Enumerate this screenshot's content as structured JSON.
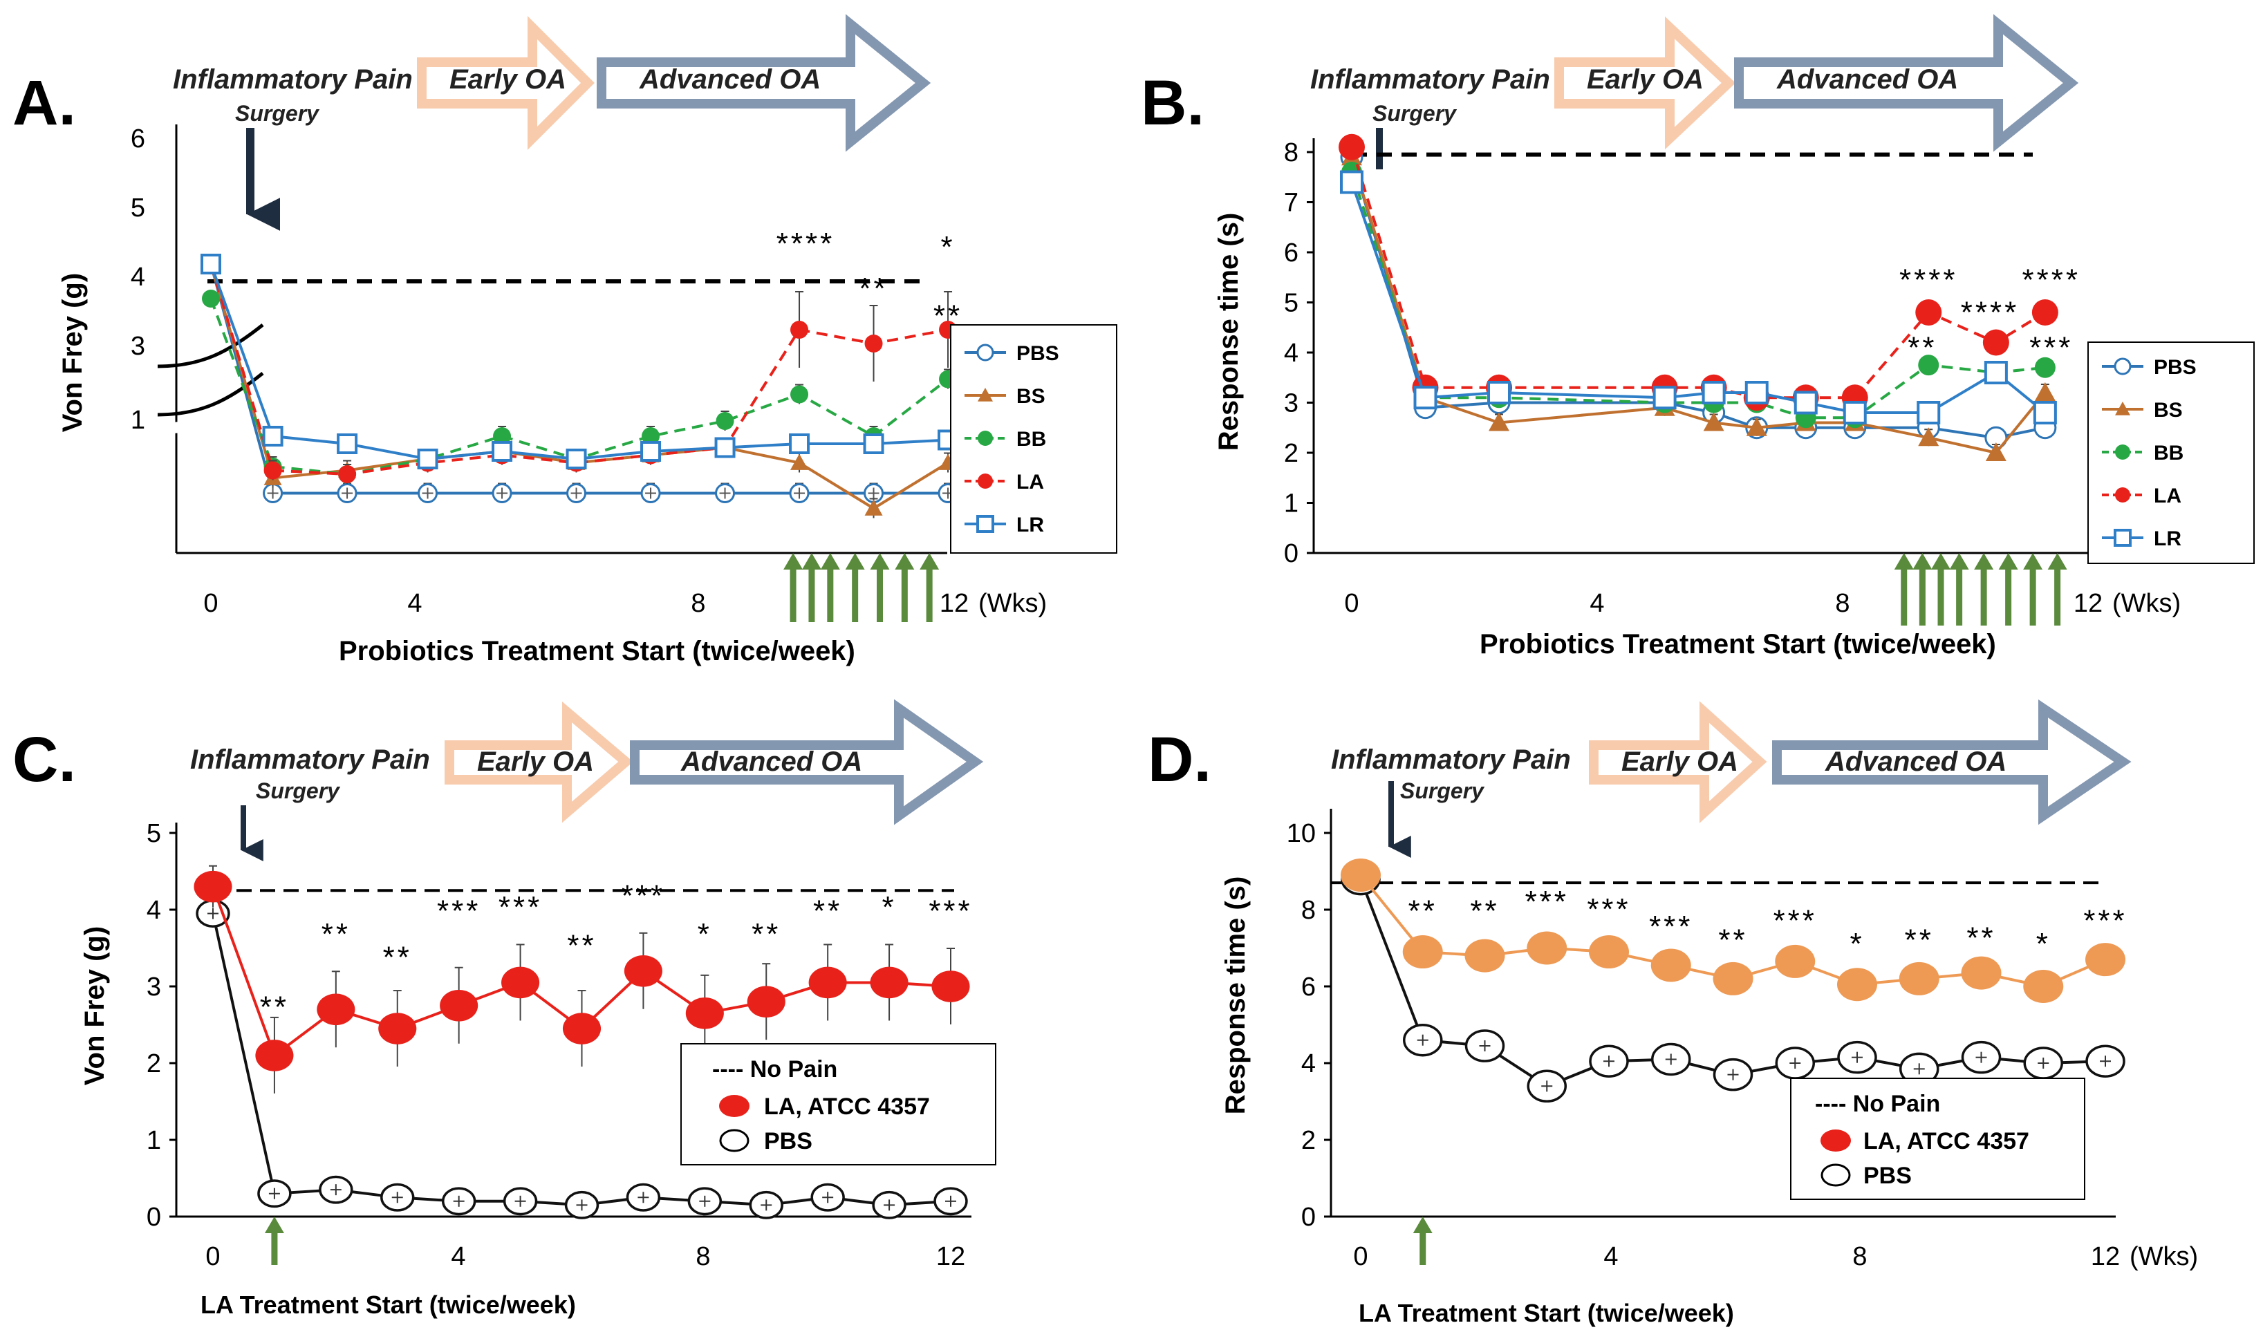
{
  "chart_data": [
    {
      "panel": "A.",
      "type": "line",
      "ylabel": "Von Frey (g)",
      "bottom_label": "Probiotics Treatment Start (twice/week)",
      "x_unit_label": "(Wks)",
      "stage_labels": {
        "pain": "Inflammatory Pain",
        "surgery": "Surgery",
        "early": "Early OA",
        "advanced": "Advanced OA"
      },
      "x_ticks": [
        "0",
        "4",
        "8",
        "12"
      ],
      "y_ticks": [
        "1",
        "3",
        "4",
        "5",
        "6"
      ],
      "xlim": [
        0,
        12
      ],
      "ylim": [
        0,
        6
      ],
      "baseline": 3.9,
      "treatment_weeks": [
        9.4,
        9.7,
        10.0,
        10.4,
        10.8,
        11.2,
        11.6
      ],
      "x": [
        0,
        1,
        2.2,
        3.5,
        4.7,
        5.9,
        7.1,
        8.3,
        9.5,
        10.7,
        11.9
      ],
      "series": [
        {
          "name": "PBS",
          "values": [
            4.15,
            0.15,
            0.15,
            0.15,
            0.15,
            0.15,
            0.15,
            0.15,
            0.15,
            0.15,
            0.15
          ]
        },
        {
          "name": "BS",
          "values": [
            4.15,
            0.35,
            0.45,
            0.6,
            0.7,
            0.55,
            0.65,
            0.75,
            0.55,
            -0.05,
            0.55
          ]
        },
        {
          "name": "BB",
          "values": [
            3.65,
            0.5,
            0.4,
            0.6,
            0.9,
            0.6,
            0.9,
            1.1,
            1.45,
            0.9,
            1.65
          ]
        },
        {
          "name": "LA",
          "values": [
            4.15,
            0.45,
            0.4,
            0.55,
            0.65,
            0.55,
            0.65,
            0.75,
            3.2,
            3.0,
            3.2
          ]
        },
        {
          "name": "LR",
          "values": [
            4.15,
            0.9,
            0.8,
            0.6,
            0.7,
            0.6,
            0.7,
            0.75,
            0.8,
            0.8,
            0.85
          ]
        }
      ],
      "stars": [
        {
          "text": "****",
          "x": 9.6,
          "y": 4.3
        },
        {
          "text": "**",
          "x": 10.7,
          "y": 3.65
        },
        {
          "text": "*",
          "x": 11.9,
          "y": 4.25
        },
        {
          "text": "**",
          "x": 11.9,
          "y": 2.35
        }
      ]
    },
    {
      "panel": "B.",
      "type": "line",
      "ylabel": "Response time (s)",
      "bottom_label": "Probiotics Treatment Start (twice/week)",
      "x_unit_label": "(Wks)",
      "stage_labels": {
        "pain": "Inflammatory Pain",
        "surgery": "Surgery",
        "early": "Early OA",
        "advanced": "Advanced OA"
      },
      "x_ticks": [
        "0",
        "4",
        "8",
        "12"
      ],
      "y_ticks": [
        "0",
        "1",
        "2",
        "3",
        "4",
        "5",
        "6",
        "7",
        "8"
      ],
      "xlim": [
        0,
        12
      ],
      "ylim": [
        0,
        8.5
      ],
      "baseline": 7.95,
      "treatment_weeks": [
        9.0,
        9.3,
        9.6,
        9.9,
        10.3,
        10.7,
        11.1,
        11.5
      ],
      "x": [
        0,
        1.2,
        2.4,
        5.1,
        5.9,
        6.6,
        7.4,
        8.2,
        9.4,
        10.5,
        11.3
      ],
      "series": [
        {
          "name": "PBS",
          "values": [
            7.9,
            2.9,
            3.0,
            3.0,
            2.8,
            2.5,
            2.5,
            2.5,
            2.5,
            2.3,
            2.5
          ]
        },
        {
          "name": "BS",
          "values": [
            7.9,
            3.1,
            2.6,
            2.9,
            2.6,
            2.5,
            2.6,
            2.6,
            2.3,
            2.0,
            3.2
          ]
        },
        {
          "name": "BB",
          "values": [
            7.6,
            3.1,
            3.1,
            3.0,
            3.0,
            3.0,
            2.7,
            2.7,
            3.75,
            3.6,
            3.7
          ]
        },
        {
          "name": "LA",
          "values": [
            8.1,
            3.3,
            3.3,
            3.3,
            3.3,
            3.1,
            3.1,
            3.1,
            4.8,
            4.2,
            4.8
          ]
        },
        {
          "name": "LR",
          "values": [
            7.4,
            3.1,
            3.2,
            3.1,
            3.2,
            3.2,
            3.0,
            2.8,
            2.8,
            3.6,
            2.8
          ]
        }
      ],
      "stars": [
        {
          "text": "****",
          "x": 9.4,
          "y": 5.25
        },
        {
          "text": "****",
          "x": 10.4,
          "y": 4.6
        },
        {
          "text": "****",
          "x": 11.4,
          "y": 5.25
        },
        {
          "text": "**",
          "x": 9.3,
          "y": 3.9
        },
        {
          "text": "***",
          "x": 11.4,
          "y": 3.9
        }
      ]
    },
    {
      "panel": "C.",
      "type": "line",
      "ylabel": "Von Frey (g)",
      "bottom_label": "LA Treatment Start (twice/week)",
      "stage_labels": {
        "pain": "Inflammatory Pain",
        "surgery": "Surgery",
        "early": "Early OA",
        "advanced": "Advanced OA"
      },
      "x_ticks": [
        "0",
        "4",
        "8",
        "12"
      ],
      "y_ticks": [
        "0",
        "1",
        "2",
        "3",
        "4",
        "5"
      ],
      "xlim": [
        0,
        12
      ],
      "ylim": [
        0,
        5
      ],
      "baseline": 4.25,
      "treatment_weeks": [
        1
      ],
      "x": [
        0,
        1,
        2,
        3,
        4,
        5,
        6,
        7,
        8,
        9,
        10,
        11,
        12
      ],
      "series": [
        {
          "name": "LA, ATCC 4357",
          "values": [
            4.3,
            2.1,
            2.7,
            2.45,
            2.75,
            3.05,
            2.45,
            3.2,
            2.65,
            2.8,
            3.05,
            3.05,
            3.0
          ]
        },
        {
          "name": "PBS",
          "values": [
            3.95,
            0.3,
            0.35,
            0.25,
            0.2,
            0.2,
            0.15,
            0.25,
            0.2,
            0.15,
            0.25,
            0.15,
            0.2
          ]
        }
      ],
      "stars": [
        {
          "text": "**",
          "x": 1,
          "y": 2.6
        },
        {
          "text": "**",
          "x": 2,
          "y": 3.55
        },
        {
          "text": "**",
          "x": 3,
          "y": 3.25
        },
        {
          "text": "***",
          "x": 4,
          "y": 3.85
        },
        {
          "text": "***",
          "x": 5,
          "y": 3.9
        },
        {
          "text": "**",
          "x": 6,
          "y": 3.4
        },
        {
          "text": "***",
          "x": 7,
          "y": 4.05
        },
        {
          "text": "*",
          "x": 8,
          "y": 3.55
        },
        {
          "text": "**",
          "x": 9,
          "y": 3.55
        },
        {
          "text": "**",
          "x": 10,
          "y": 3.85
        },
        {
          "text": "*",
          "x": 11,
          "y": 3.9
        },
        {
          "text": "***",
          "x": 12,
          "y": 3.85
        }
      ],
      "legend": {
        "nopain": "---- No Pain",
        "la": "LA, ATCC 4357",
        "pbs": "PBS"
      }
    },
    {
      "panel": "D.",
      "type": "line",
      "ylabel": "Response time (s)",
      "bottom_label": "LA Treatment Start (twice/week)",
      "x_unit_label": "(Wks)",
      "stage_labels": {
        "pain": "Inflammatory Pain",
        "surgery": "Surgery",
        "early": "Early OA",
        "advanced": "Advanced OA"
      },
      "x_ticks": [
        "0",
        "4",
        "8",
        "12"
      ],
      "y_ticks": [
        "0",
        "2",
        "4",
        "6",
        "8",
        "10"
      ],
      "xlim": [
        0,
        12
      ],
      "ylim": [
        0,
        10
      ],
      "baseline": 8.7,
      "treatment_weeks": [
        1
      ],
      "x": [
        0,
        1,
        2,
        3,
        4,
        5,
        6,
        7,
        8,
        9,
        10,
        11,
        12
      ],
      "series": [
        {
          "name": "LA, ATCC 4357",
          "values": [
            8.9,
            6.9,
            6.8,
            7.0,
            6.9,
            6.55,
            6.2,
            6.65,
            6.05,
            6.2,
            6.35,
            6.0,
            6.7
          ]
        },
        {
          "name": "PBS",
          "values": [
            8.8,
            4.6,
            4.45,
            3.4,
            4.05,
            4.1,
            3.7,
            4.0,
            4.15,
            3.85,
            4.15,
            4.0,
            4.05
          ]
        }
      ],
      "stars": [
        {
          "text": "**",
          "x": 1,
          "y": 7.7
        },
        {
          "text": "**",
          "x": 2,
          "y": 7.7
        },
        {
          "text": "***",
          "x": 3,
          "y": 7.95
        },
        {
          "text": "***",
          "x": 4,
          "y": 7.75
        },
        {
          "text": "***",
          "x": 5,
          "y": 7.3
        },
        {
          "text": "**",
          "x": 6,
          "y": 6.95
        },
        {
          "text": "***",
          "x": 7,
          "y": 7.45
        },
        {
          "text": "*",
          "x": 8,
          "y": 6.85
        },
        {
          "text": "**",
          "x": 9,
          "y": 6.95
        },
        {
          "text": "**",
          "x": 10,
          "y": 7.0
        },
        {
          "text": "*",
          "x": 11,
          "y": 6.85
        },
        {
          "text": "***",
          "x": 12,
          "y": 7.45
        }
      ],
      "legend": {
        "nopain": "---- No Pain",
        "la": "LA, ATCC 4357",
        "pbs": "PBS"
      }
    }
  ],
  "legend_ab": [
    "PBS",
    "BS",
    "BB",
    "LA",
    "LR"
  ],
  "colors": {
    "PBS": "#2e75b6",
    "BS": "#c0702f",
    "BB": "#27a844",
    "LA": "#e8221b",
    "LR": "#2f7fc8",
    "early_arrow_fill": "#ffffff",
    "early_arrow_stroke": "#f8cbad",
    "advanced_arrow_stroke": "#8497b0",
    "treatment_arrow": "#5a8a3c",
    "la_line_cd": "#e8221b",
    "la_line_d": "#ee9a55",
    "pbs_line_cd": "#111111"
  }
}
